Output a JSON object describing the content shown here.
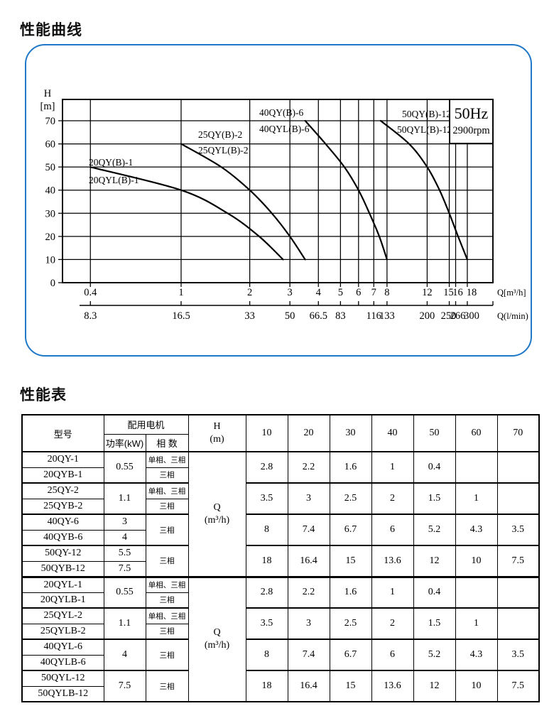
{
  "page": {
    "curve_title": "性能曲线",
    "table_title": "性能表"
  },
  "chart_data": {
    "type": "line",
    "title": "性能曲线",
    "freq_label": "50Hz",
    "rpm_label": "2900rpm",
    "y_axis": {
      "label": "H",
      "unit": "[m]",
      "ticks": [
        0,
        10,
        20,
        30,
        40,
        50,
        60,
        70
      ]
    },
    "x_axis_top": {
      "label": "Q[m³/h]",
      "scale": "log",
      "ticks": [
        0.4,
        1,
        2,
        3,
        4,
        5,
        6,
        7,
        8,
        12,
        15,
        16,
        18
      ]
    },
    "x_axis_bottom": {
      "label": "Q(l/min)",
      "ticks": [
        {
          "at": 0.4,
          "label": "8.3"
        },
        {
          "at": 1,
          "label": "16.5"
        },
        {
          "at": 2,
          "label": "33"
        },
        {
          "at": 3,
          "label": "50"
        },
        {
          "at": 4,
          "label": "66.5"
        },
        {
          "at": 5,
          "label": "83"
        },
        {
          "at": 6,
          "label": ""
        },
        {
          "at": 7,
          "label": "116"
        },
        {
          "at": 8,
          "label": "133"
        },
        {
          "at": 12,
          "label": "200"
        },
        {
          "at": 15,
          "label": "250"
        },
        {
          "at": 16,
          "label": "266"
        },
        {
          "at": 18,
          "label": "300"
        }
      ]
    },
    "series": [
      {
        "name": "20QY(B)-1",
        "alt_name": "20QYL(B)-1",
        "points": [
          [
            0.4,
            50
          ],
          [
            1,
            40
          ],
          [
            1.6,
            30
          ],
          [
            2.2,
            20
          ],
          [
            2.8,
            10
          ]
        ]
      },
      {
        "name": "25QY(B)-2",
        "alt_name": "25QYL(B)-2",
        "points": [
          [
            1,
            60
          ],
          [
            1.5,
            50
          ],
          [
            2,
            40
          ],
          [
            2.5,
            30
          ],
          [
            3,
            20
          ],
          [
            3.5,
            10
          ]
        ]
      },
      {
        "name": "40QY(B)-6",
        "alt_name": "40QYL(B)-6",
        "points": [
          [
            3.5,
            70
          ],
          [
            4.3,
            60
          ],
          [
            5.2,
            50
          ],
          [
            6,
            40
          ],
          [
            6.7,
            30
          ],
          [
            7.4,
            20
          ],
          [
            8,
            10
          ]
        ]
      },
      {
        "name": "50QY(B)-12",
        "alt_name": "50QYL(B)-12",
        "points": [
          [
            7.5,
            70
          ],
          [
            10,
            60
          ],
          [
            12,
            50
          ],
          [
            13.6,
            40
          ],
          [
            15,
            30
          ],
          [
            16.4,
            20
          ],
          [
            18,
            10
          ]
        ]
      }
    ]
  },
  "perf_table": {
    "header": {
      "model": "型号",
      "motor_group": "配用电机",
      "power": "功率(kW)",
      "phase": "相 数",
      "head_line1": "H",
      "head_line2": "(m)",
      "heads": [
        "10",
        "20",
        "30",
        "40",
        "50",
        "60",
        "70"
      ]
    },
    "flow_unit": {
      "line1": "Q",
      "line2": "(m³/h)"
    },
    "sections": [
      {
        "groups": [
          {
            "models": [
              "20QY-1",
              "20QYB-1"
            ],
            "powers": [
              "0.55"
            ],
            "phases": [
              "单相、三相",
              "三相"
            ],
            "values": [
              "2.8",
              "2.2",
              "1.6",
              "1",
              "0.4",
              "",
              ""
            ]
          },
          {
            "models": [
              "25QY-2",
              "25QYB-2"
            ],
            "powers": [
              "1.1"
            ],
            "phases": [
              "单相、三相",
              "三相"
            ],
            "values": [
              "3.5",
              "3",
              "2.5",
              "2",
              "1.5",
              "1",
              ""
            ]
          },
          {
            "models": [
              "40QY-6",
              "40QYB-6"
            ],
            "powers": [
              "3",
              "4"
            ],
            "phases": [
              "三相"
            ],
            "values": [
              "8",
              "7.4",
              "6.7",
              "6",
              "5.2",
              "4.3",
              "3.5"
            ]
          },
          {
            "models": [
              "50QY-12",
              "50QYB-12"
            ],
            "powers": [
              "5.5",
              "7.5"
            ],
            "phases": [
              "三相"
            ],
            "values": [
              "18",
              "16.4",
              "15",
              "13.6",
              "12",
              "10",
              "7.5"
            ]
          }
        ]
      },
      {
        "groups": [
          {
            "models": [
              "20QYL-1",
              "20QYLB-1"
            ],
            "powers": [
              "0.55"
            ],
            "phases": [
              "单相、三相",
              "三相"
            ],
            "values": [
              "2.8",
              "2.2",
              "1.6",
              "1",
              "0.4",
              "",
              ""
            ]
          },
          {
            "models": [
              "25QYL-2",
              "25QYLB-2"
            ],
            "powers": [
              "1.1"
            ],
            "phases": [
              "单相、三相",
              "三相"
            ],
            "values": [
              "3.5",
              "3",
              "2.5",
              "2",
              "1.5",
              "1",
              ""
            ]
          },
          {
            "models": [
              "40QYL-6",
              "40QYLB-6"
            ],
            "powers": [
              "4"
            ],
            "phases": [
              "三相"
            ],
            "values": [
              "8",
              "7.4",
              "6.7",
              "6",
              "5.2",
              "4.3",
              "3.5"
            ]
          },
          {
            "models": [
              "50QYL-12",
              "50QYLB-12"
            ],
            "powers": [
              "7.5"
            ],
            "phases": [
              "三相"
            ],
            "values": [
              "18",
              "16.4",
              "15",
              "13.6",
              "12",
              "10",
              "7.5"
            ]
          }
        ]
      }
    ]
  },
  "colors": {
    "panel_border": "#1f78c8",
    "ink": "#000000"
  }
}
